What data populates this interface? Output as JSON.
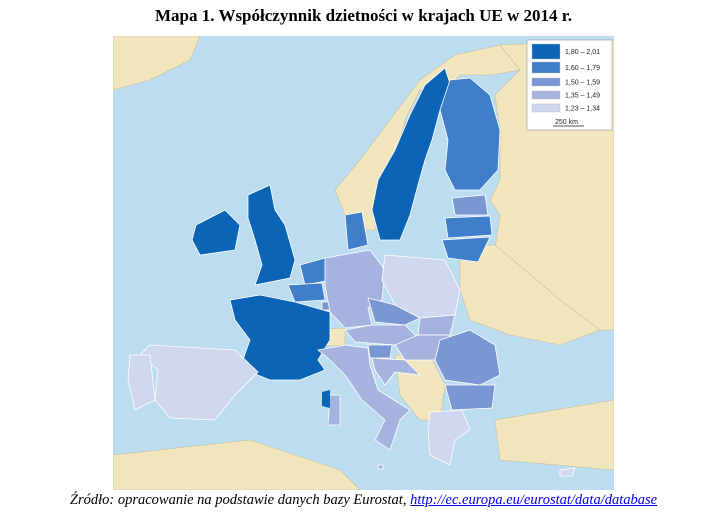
{
  "title": "Mapa 1. Współczynnik dzietności w krajach UE w 2014 r.",
  "caption": {
    "text": "Źródło: opracowanie na podstawie danych bazy Eurostat, ",
    "link": "http://ec.europa.eu/eurostat/data/database"
  },
  "colors": {
    "sea": "#bcdcef",
    "non_eu_land": "#f2e6bf"
  },
  "legend": {
    "classes": [
      {
        "label": "1,80 – 2,01",
        "color": "#0b64b5"
      },
      {
        "label": "1,60 – 1,79",
        "color": "#3f7ec9"
      },
      {
        "label": "1,50 – 1,59",
        "color": "#7a97d3"
      },
      {
        "label": "1,35 – 1,49",
        "color": "#a6b3df"
      },
      {
        "label": "1,23 – 1,34",
        "color": "#cfd8ef"
      }
    ],
    "scale": "250 km"
  },
  "countries": {
    "France": 0,
    "Ireland": 0,
    "United Kingdom": 0,
    "Sweden": 0,
    "Finland": 1,
    "Belgium": 1,
    "Netherlands": 1,
    "Denmark": 1,
    "Latvia": 1,
    "Lithuania": 1,
    "Estonia": 2,
    "Romania": 2,
    "Bulgaria": 2,
    "Czech Republic": 2,
    "Slovenia": 2,
    "Luxembourg": 2,
    "Germany": 3,
    "Austria": 3,
    "Hungary": 3,
    "Croatia": 3,
    "Italy": 3,
    "Slovakia": 3,
    "Malta": 3,
    "Spain": 4,
    "Portugal": 4,
    "Poland": 4,
    "Greece": 4,
    "Cyprus": 4
  }
}
